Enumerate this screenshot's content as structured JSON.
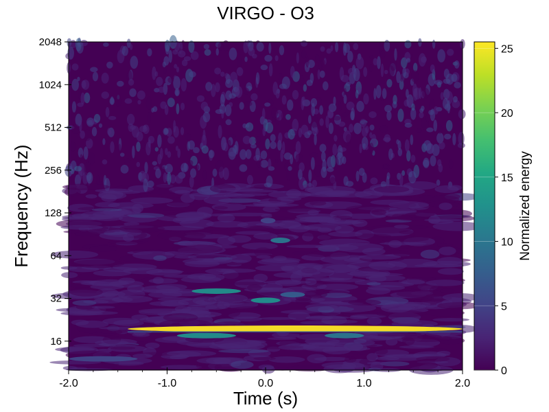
{
  "chart_data": {
    "type": "heatmap",
    "title": "VIRGO - O3",
    "xlabel": "Time (s)",
    "ylabel": "Frequency (Hz)",
    "xlim": [
      -2.0,
      2.0
    ],
    "ylim": [
      10,
      2048
    ],
    "yscale": "log2",
    "xticks": [
      -2.0,
      -1.0,
      0.0,
      1.0,
      2.0
    ],
    "xtick_labels": [
      "-2.0",
      "-1.0",
      "0.0",
      "1.0",
      "2.0"
    ],
    "yticks": [
      16,
      32,
      64,
      128,
      256,
      512,
      1024,
      2048
    ],
    "ytick_labels": [
      "16",
      "32",
      "64",
      "128",
      "256",
      "512",
      "1024",
      "2048"
    ],
    "colormap": "viridis",
    "colorbar": {
      "label": "Normalized energy",
      "range": [
        0,
        25.5
      ],
      "ticks": [
        0,
        5,
        10,
        15,
        20,
        25
      ],
      "tick_labels": [
        "0",
        "5",
        "10",
        "15",
        "20",
        "25"
      ]
    },
    "features": [
      {
        "t_start": -1.4,
        "t_end": 2.0,
        "freq": 19.5,
        "energy": 25
      },
      {
        "t_start": -0.9,
        "t_end": -0.3,
        "freq": 17.5,
        "energy": 12
      },
      {
        "t_start": 0.6,
        "t_end": 1.0,
        "freq": 17.5,
        "energy": 10
      },
      {
        "t_start": -0.75,
        "t_end": -0.25,
        "freq": 36,
        "energy": 12
      },
      {
        "t_start": -0.15,
        "t_end": 0.15,
        "freq": 31,
        "energy": 12
      },
      {
        "t_start": 0.15,
        "t_end": 0.4,
        "freq": 34,
        "energy": 8
      },
      {
        "t_start": 0.05,
        "t_end": 0.25,
        "freq": 82,
        "energy": 9
      },
      {
        "t_start": -0.05,
        "t_end": 0.1,
        "freq": 113,
        "energy": 6
      },
      {
        "t_start": -2.0,
        "t_end": -1.3,
        "freq": 12,
        "energy": 6
      }
    ]
  },
  "colors": {
    "viridis": [
      "#440154",
      "#482475",
      "#414487",
      "#355f8d",
      "#2a788e",
      "#21918c",
      "#22a884",
      "#44bf70",
      "#7ad151",
      "#bddf26",
      "#fde725"
    ]
  }
}
